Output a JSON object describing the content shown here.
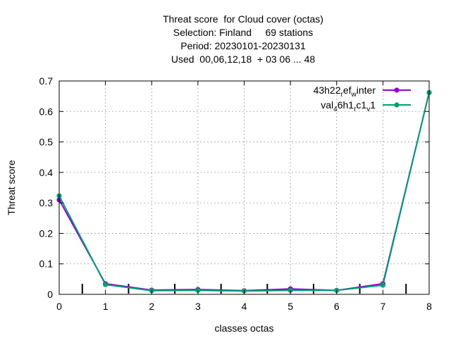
{
  "chart_data": {
    "type": "line",
    "title_lines": [
      "Threat score  for Cloud cover (octas)",
      "Selection: Finland     69 stations",
      "Period: 20230101-20230131",
      "Used  00,06,12,18  + 03 06 ... 48"
    ],
    "xlabel": "classes octas",
    "ylabel": "Threat score",
    "xlim": [
      0,
      8
    ],
    "ylim": [
      0,
      0.7
    ],
    "x_ticks": [
      "0",
      "1",
      "2",
      "3",
      "4",
      "5",
      "6",
      "7",
      "8"
    ],
    "y_ticks": [
      "0",
      "0.1",
      "0.2",
      "0.3",
      "0.4",
      "0.5",
      "0.6",
      "0.7"
    ],
    "class_boundaries": [
      0.5,
      1.5,
      2.5,
      3.5,
      4.5,
      5.5,
      6.5,
      7.5
    ],
    "grid": true,
    "legend_position": "top-right",
    "x": [
      0,
      1,
      2,
      3,
      4,
      5,
      6,
      7,
      8
    ],
    "series": [
      {
        "legend_parts": [
          [
            "43h22",
            "base"
          ],
          [
            "r",
            "sub"
          ],
          [
            "ef",
            "base"
          ],
          [
            "w",
            "sub"
          ],
          [
            "inter",
            "base"
          ]
        ],
        "color": "#9400d3",
        "values": [
          0.31,
          0.035,
          0.014,
          0.016,
          0.012,
          0.018,
          0.013,
          0.035,
          0.662
        ]
      },
      {
        "legend_parts": [
          [
            "val",
            "base"
          ],
          [
            "4",
            "sub"
          ],
          [
            "6h1",
            "base"
          ],
          [
            "r",
            "sub"
          ],
          [
            "c1",
            "base"
          ],
          [
            "v",
            "sub"
          ],
          [
            "1",
            "base"
          ]
        ],
        "color": "#009e73",
        "values": [
          0.323,
          0.032,
          0.012,
          0.013,
          0.011,
          0.013,
          0.013,
          0.03,
          0.662
        ]
      }
    ]
  }
}
